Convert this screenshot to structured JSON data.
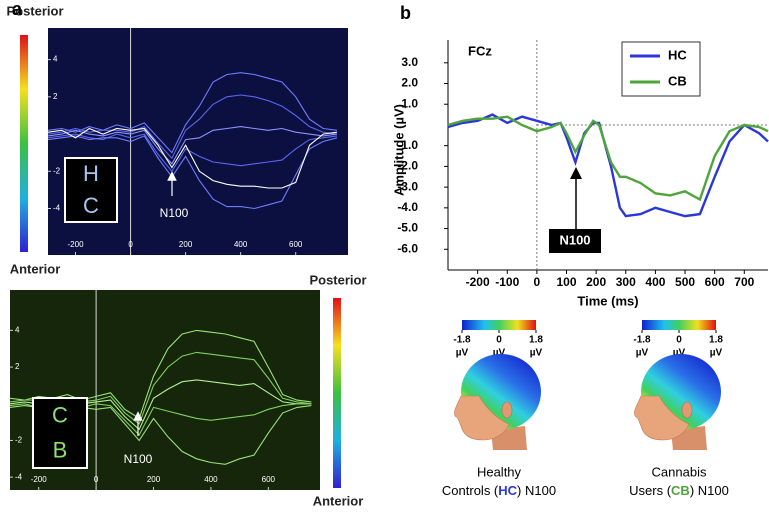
{
  "chart_data": [
    {
      "type": "butterfly",
      "panel_label": "a",
      "x": [
        -300,
        -250,
        -200,
        -150,
        -100,
        -50,
        0,
        50,
        100,
        150,
        200,
        250,
        300,
        350,
        400,
        450,
        500,
        550,
        600,
        650,
        700,
        750
      ],
      "series": [
        {
          "color": "#6f7cff",
          "values": [
            0.2,
            0.3,
            0.1,
            0.4,
            0.2,
            0.5,
            0.3,
            0.6,
            -0.2,
            -1.0,
            0.5,
            1.5,
            2.8,
            3.2,
            3.3,
            3.2,
            3.0,
            2.8,
            2.0,
            0.8,
            0.3,
            0.2
          ]
        },
        {
          "color": "#5a66f0",
          "values": [
            0,
            0.1,
            0.3,
            0.1,
            0.2,
            0.2,
            0.1,
            0.4,
            -0.5,
            -1.3,
            0.2,
            0.8,
            1.6,
            2.0,
            2.1,
            2.0,
            1.8,
            1.5,
            1.0,
            0.4,
            0.1,
            0
          ]
        },
        {
          "color": "#8a94ff",
          "values": [
            -0.1,
            0,
            0.2,
            0,
            -0.1,
            0.1,
            0,
            0.2,
            -0.8,
            -1.6,
            -0.3,
            -0.2,
            0.2,
            0.3,
            0.4,
            0.3,
            0.2,
            0.3,
            0.1,
            0,
            -0.1,
            0
          ]
        },
        {
          "color": "#5a66f0",
          "values": [
            -0.2,
            -0.1,
            0,
            -0.2,
            -0.3,
            0,
            -0.2,
            0,
            -1.1,
            -2.0,
            -0.8,
            -1.2,
            -1.5,
            -1.6,
            -1.7,
            -1.6,
            -1.5,
            -1.4,
            -0.8,
            -0.3,
            -0.2,
            -0.1
          ]
        },
        {
          "color": "#6f7cff",
          "values": [
            -0.3,
            -0.2,
            -0.1,
            -0.3,
            -0.2,
            -0.2,
            -0.4,
            -0.1,
            -1.3,
            -2.3,
            -1.2,
            -2.5,
            -3.5,
            -3.9,
            -3.9,
            -4.0,
            -3.8,
            -3.6,
            -2.2,
            -0.8,
            -0.4,
            -0.2
          ]
        },
        {
          "color": "#ffffff",
          "values": [
            0.1,
            0.2,
            -0.2,
            0.3,
            0,
            0.3,
            0.2,
            0.3,
            -0.6,
            -1.8,
            -0.6,
            -2.0,
            -2.5,
            -2.7,
            -2.8,
            -2.8,
            -2.9,
            -2.9,
            -2.6,
            -0.6,
            0,
            0.1
          ]
        }
      ],
      "xlim": [
        -300,
        790
      ],
      "ylim": [
        -6.5,
        5.7
      ],
      "xticks": [
        -200,
        0,
        200,
        400,
        600
      ],
      "yticks": [
        -4,
        -2,
        2,
        4
      ],
      "group_label": [
        "H",
        "C"
      ],
      "annotation": "N100",
      "colorbar": {
        "top": "Posterior",
        "bottom": "Anterior"
      }
    },
    {
      "type": "butterfly",
      "x": [
        -300,
        -250,
        -200,
        -150,
        -100,
        -50,
        0,
        50,
        100,
        150,
        200,
        250,
        300,
        350,
        400,
        450,
        500,
        550,
        600,
        650,
        700,
        750
      ],
      "series": [
        {
          "color": "#9be07a",
          "values": [
            0.3,
            0.2,
            0.4,
            0.3,
            0.5,
            0.2,
            0.4,
            0.6,
            -0.3,
            -0.8,
            1.5,
            3.0,
            3.8,
            4.0,
            3.9,
            3.8,
            3.6,
            3.4,
            2.0,
            0.5,
            0.2,
            0.1
          ]
        },
        {
          "color": "#7fcf5e",
          "values": [
            0.1,
            0.2,
            0.2,
            0,
            0.3,
            0.1,
            0.2,
            0.4,
            -0.5,
            -1.1,
            1.0,
            2.0,
            2.6,
            2.8,
            2.7,
            2.6,
            2.5,
            2.4,
            1.4,
            0.3,
            0.1,
            0
          ]
        },
        {
          "color": "#b3ee94",
          "values": [
            0,
            0.1,
            0,
            0.1,
            0,
            0,
            0.1,
            0.2,
            -0.7,
            -1.4,
            0.3,
            0.8,
            1.2,
            1.3,
            1.2,
            1.1,
            1.0,
            1.1,
            0.6,
            0.1,
            0,
            0
          ]
        },
        {
          "color": "#7fcf5e",
          "values": [
            -0.1,
            0,
            -0.2,
            -0.1,
            -0.1,
            -0.2,
            0,
            -0.1,
            -0.9,
            -1.7,
            -0.2,
            -0.4,
            -0.6,
            -0.8,
            -0.9,
            -0.8,
            -0.7,
            -0.6,
            -0.3,
            -0.1,
            0,
            0
          ]
        },
        {
          "color": "#9be07a",
          "values": [
            -0.2,
            -0.1,
            -0.2,
            -0.3,
            -0.3,
            -0.2,
            -0.3,
            -0.2,
            -1.1,
            -2.0,
            -0.8,
            -1.8,
            -2.6,
            -3.0,
            -3.2,
            -3.3,
            -3.0,
            -2.8,
            -1.6,
            -0.5,
            -0.2,
            -0.1
          ]
        }
      ],
      "xlim": [
        -300,
        780
      ],
      "ylim": [
        -4.7,
        6.2
      ],
      "xticks": [
        -200,
        0,
        200,
        400,
        600
      ],
      "yticks": [
        -4,
        -2,
        2,
        4
      ],
      "group_label": [
        "C",
        "B"
      ],
      "annotation": "N100",
      "colorbar": {
        "top": "Posterior",
        "bottom": "Anterior"
      }
    },
    {
      "type": "line",
      "panel_label": "b",
      "title": "FCz",
      "x": [
        -300,
        -250,
        -200,
        -150,
        -100,
        -50,
        0,
        50,
        80,
        100,
        130,
        160,
        190,
        210,
        250,
        280,
        300,
        350,
        400,
        450,
        500,
        550,
        600,
        650,
        700,
        750,
        780
      ],
      "series": [
        {
          "name": "HC",
          "color": "#2b37d8",
          "values": [
            -0.1,
            0.1,
            0.2,
            0.5,
            0.1,
            0.4,
            0.2,
            0.0,
            0.1,
            -0.6,
            -1.8,
            -0.4,
            0.1,
            0.1,
            -2.0,
            -4.0,
            -4.4,
            -4.3,
            -4.0,
            -4.2,
            -4.4,
            -4.3,
            -2.5,
            -0.8,
            0.0,
            -0.4,
            -0.8
          ]
        },
        {
          "name": "CB",
          "color": "#4ea53a",
          "values": [
            0.0,
            0.2,
            0.3,
            0.3,
            0.4,
            0.0,
            -0.3,
            -0.1,
            0.1,
            -0.4,
            -1.3,
            -0.5,
            0.2,
            0.0,
            -1.8,
            -2.5,
            -2.5,
            -2.8,
            -3.3,
            -3.4,
            -3.2,
            -3.6,
            -1.5,
            -0.3,
            0.0,
            -0.1,
            -0.3
          ]
        }
      ],
      "xlim": [
        -300,
        780
      ],
      "ylim": [
        -7,
        4.1
      ],
      "xticks": [
        -200,
        -100,
        0,
        100,
        200,
        300,
        400,
        500,
        600,
        700
      ],
      "yticks": [
        {
          "value": 3,
          "label": "3.0"
        },
        {
          "value": 2,
          "label": "2.0"
        },
        {
          "value": 1,
          "label": "1.0"
        },
        {
          "value": -1,
          "label": "-1.0"
        },
        {
          "value": -2,
          "label": "-2.0"
        },
        {
          "value": -3,
          "label": "-3.0"
        },
        {
          "value": -4,
          "label": "-4.0"
        },
        {
          "value": -5,
          "label": "-5.0"
        },
        {
          "value": -6,
          "label": "-6.0"
        }
      ],
      "x_label": "Time (ms)",
      "y_label": "Amplitude (µV)",
      "annotation": "N100"
    },
    {
      "type": "topomap",
      "clim": [
        -1.8,
        1.8
      ],
      "cticks": [
        -1.8,
        0,
        1.8
      ],
      "unit": "µV",
      "caption_line1": "Healthy",
      "caption_prefix": "Controls (",
      "group": "HC",
      "group_color": "#2b37d8",
      "caption_suffix": ") N100"
    },
    {
      "type": "topomap",
      "clim": [
        -1.8,
        1.8
      ],
      "cticks": [
        -1.8,
        0,
        1.8
      ],
      "unit": "µV",
      "caption_line1": "Cannabis",
      "caption_prefix": "Users (",
      "group": "CB",
      "group_color": "#4ea53a",
      "caption_suffix": ") N100"
    }
  ]
}
